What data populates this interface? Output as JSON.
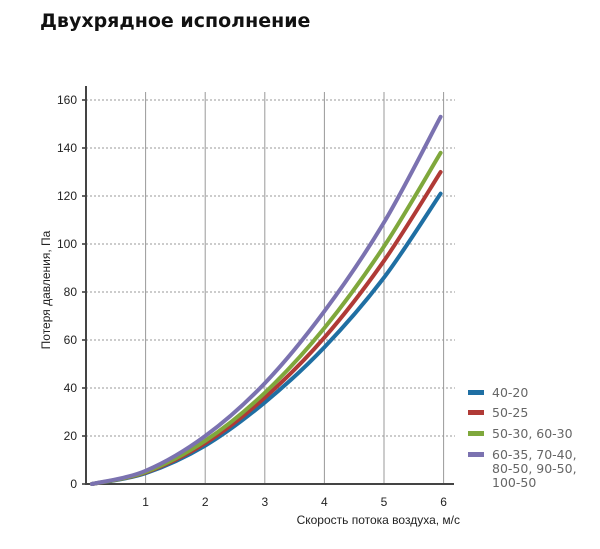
{
  "chart_data": {
    "type": "line",
    "title": "Двухрядное исполнение",
    "xlabel": "Скорость потока воздуха, м/с",
    "ylabel": "Потеря давления, Па",
    "xlim": [
      0,
      6
    ],
    "ylim": [
      0,
      160
    ],
    "xticks": [
      "1",
      "2",
      "3",
      "4",
      "5",
      "6"
    ],
    "yticks": [
      "0",
      "20",
      "40",
      "60",
      "80",
      "100",
      "120",
      "140",
      "160"
    ],
    "grid": "vertical solid, horizontal dashed",
    "legend_position": "right-bottom",
    "x": [
      0.1,
      1,
      2,
      3,
      4,
      5,
      5.95
    ],
    "series": [
      {
        "name": "40-20",
        "color": "#1f6fa3",
        "values": [
          0,
          4.5,
          16,
          34,
          57,
          86,
          121
        ]
      },
      {
        "name": "50-25",
        "color": "#b03a36",
        "values": [
          0,
          4.8,
          17,
          36,
          61,
          93,
          130
        ]
      },
      {
        "name": "50-30, 60-30",
        "color": "#7fa83c",
        "values": [
          0,
          5,
          18,
          38,
          65,
          99,
          138
        ]
      },
      {
        "name_lines": [
          "60-35, 70-40,",
          "80-50, 90-50,",
          "100-50"
        ],
        "name": "60-35, 70-40, 80-50, 90-50, 100-50",
        "color": "#7b72b0",
        "values": [
          0,
          5.5,
          20,
          42,
          72,
          109,
          153
        ]
      }
    ]
  }
}
